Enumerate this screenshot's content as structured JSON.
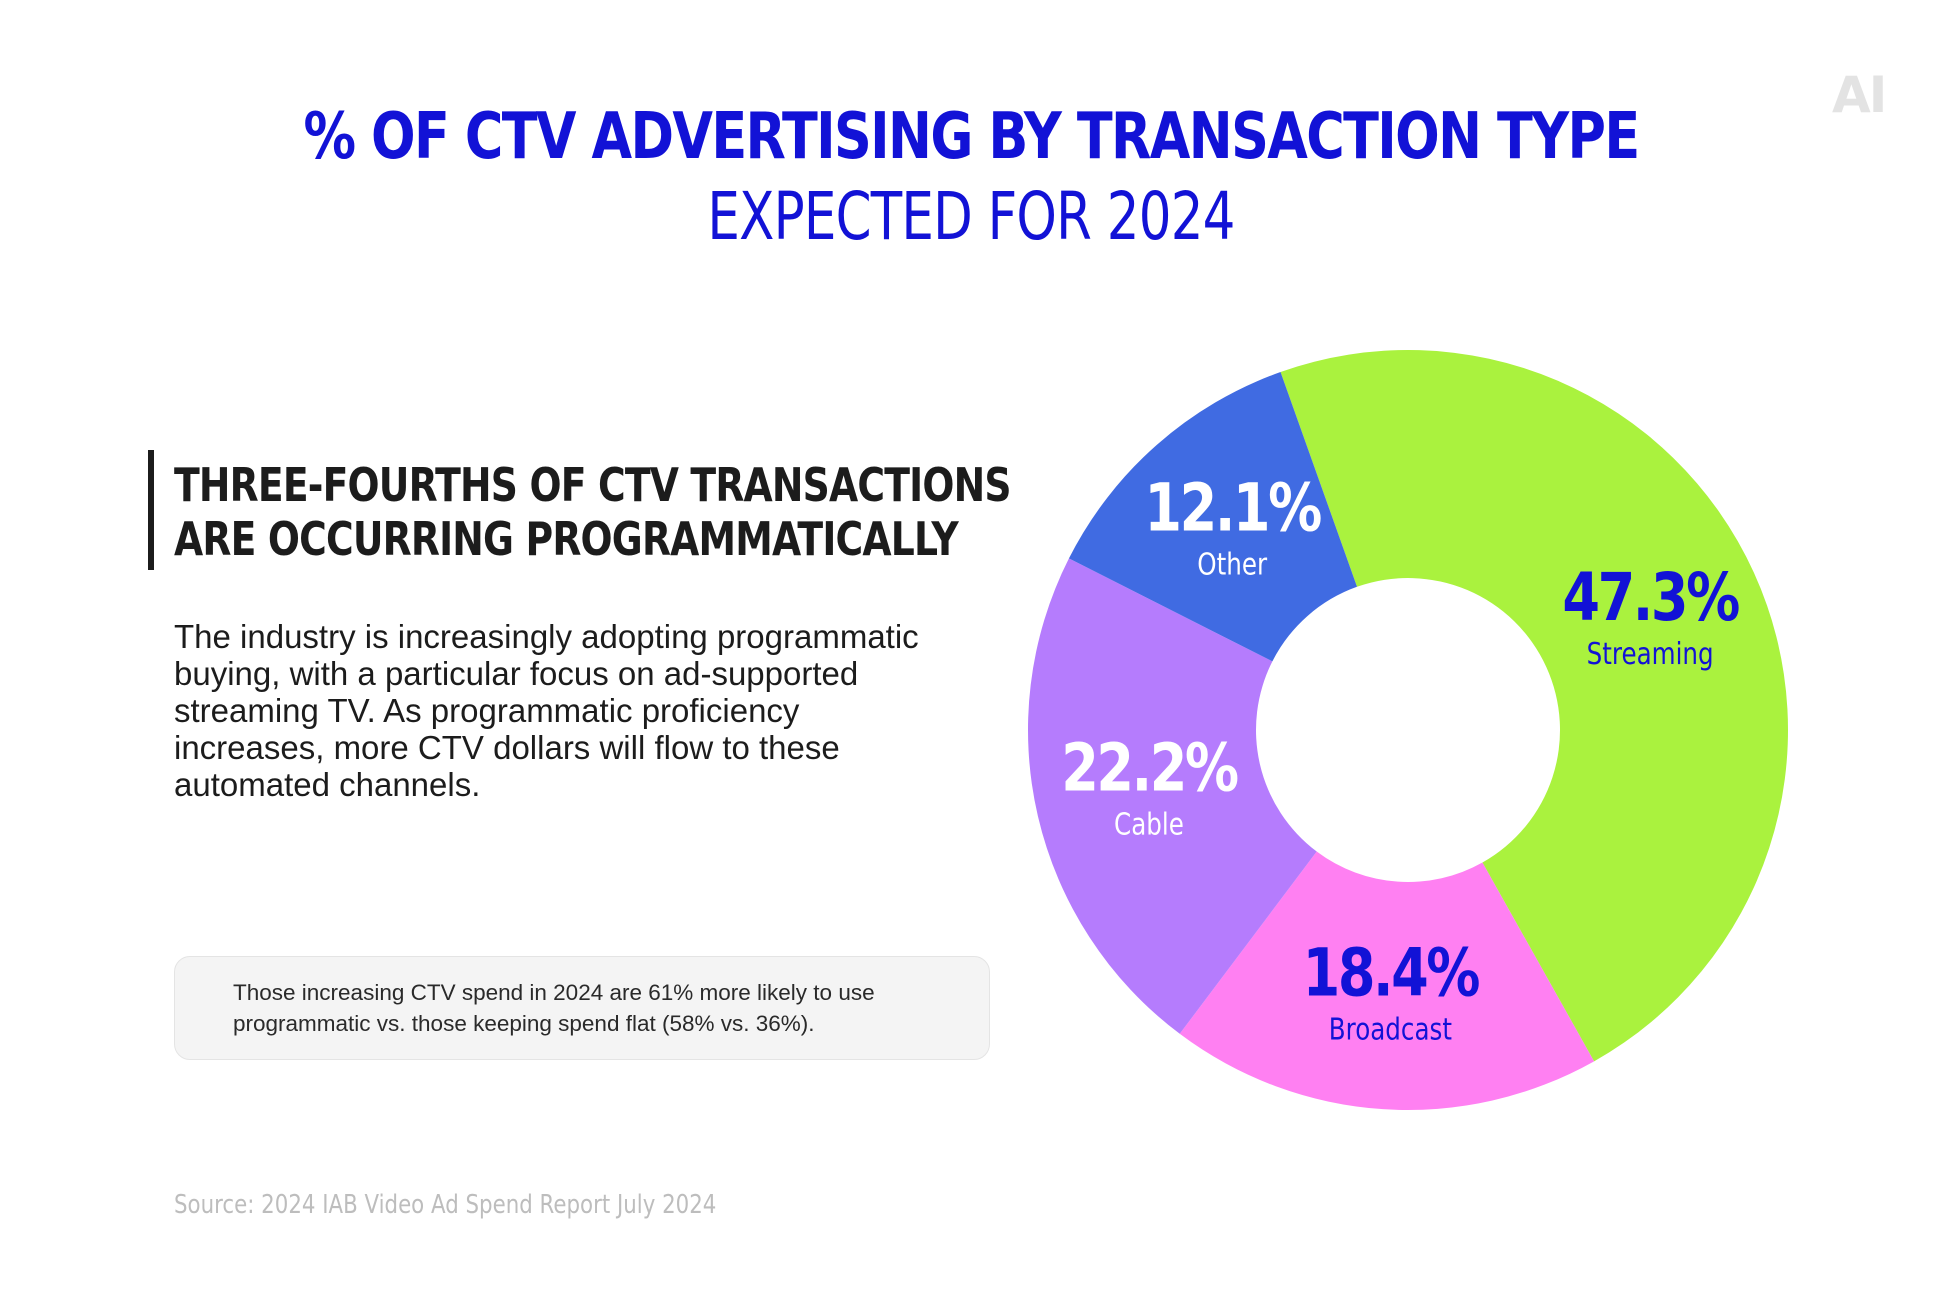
{
  "logo": "AI",
  "title": "% OF CTV ADVERTISING BY TRANSACTION TYPE",
  "subtitle": "EXPECTED FOR 2024",
  "headline": {
    "line1": "THREE-FOURTHS OF CTV TRANSACTIONS",
    "line2": "ARE OCCURRING PROGRAMMATICALLY"
  },
  "body": "The industry is increasingly adopting programmatic buying, with a particular focus on ad-supported streaming TV. As programmatic proficiency increases, more CTV dollars will flow to these automated channels.",
  "note": "Those increasing CTV spend in 2024 are 61% more likely to use programmatic vs. those keeping spend flat (58% vs. 36%).",
  "source": "Source: 2024 IAB Video Ad Spend Report July 2024",
  "chart_data": {
    "type": "pie",
    "donut": true,
    "categories": [
      "Streaming",
      "Broadcast",
      "Cable",
      "Other"
    ],
    "values": [
      47.3,
      18.4,
      22.2,
      12.1
    ],
    "value_labels": [
      "47.3%",
      "18.4%",
      "22.2%",
      "12.1%"
    ],
    "colors": [
      "#aaf23e",
      "#ff80f2",
      "#b57cfd",
      "#406be2"
    ],
    "label_colors": [
      "#1212d6",
      "#1212d6",
      "#ffffff",
      "#ffffff"
    ],
    "direction": "clockwise"
  }
}
